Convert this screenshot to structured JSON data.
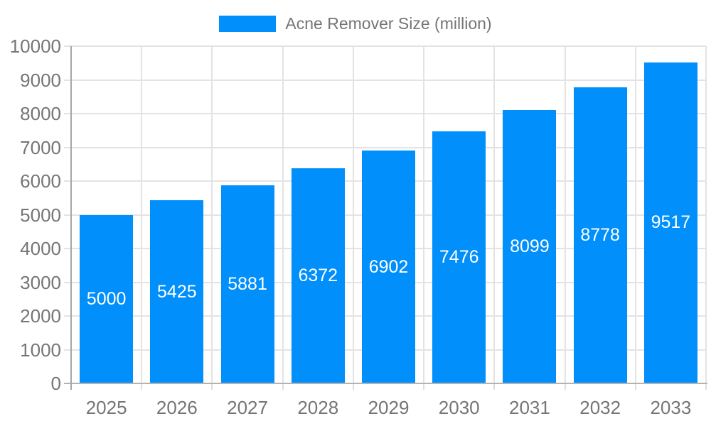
{
  "chart_data": {
    "type": "bar",
    "title": "Acne Remover Size (million)",
    "categories": [
      "2025",
      "2026",
      "2027",
      "2028",
      "2029",
      "2030",
      "2031",
      "2032",
      "2033"
    ],
    "series": [
      {
        "name": "Acne Remover Size (million)",
        "values": [
          5000,
          5425,
          5881,
          6372,
          6902,
          7476,
          8099,
          8778,
          9517
        ]
      }
    ],
    "xlabel": "",
    "ylabel": "",
    "ylim": [
      0,
      10000
    ],
    "ytick_step": 1000,
    "grid": true,
    "legend_position": "top-center",
    "value_labels": "inside-center"
  },
  "colors": {
    "bar": "#008FFB",
    "axis_text": "#757575",
    "value_label_text": "#ffffff",
    "gridline": "#e3e3e3",
    "y_axis_line": "#a6a6a6",
    "x_axis_line": "#b3b3b3",
    "minor_tick": "#dedede",
    "background": "#ffffff"
  }
}
